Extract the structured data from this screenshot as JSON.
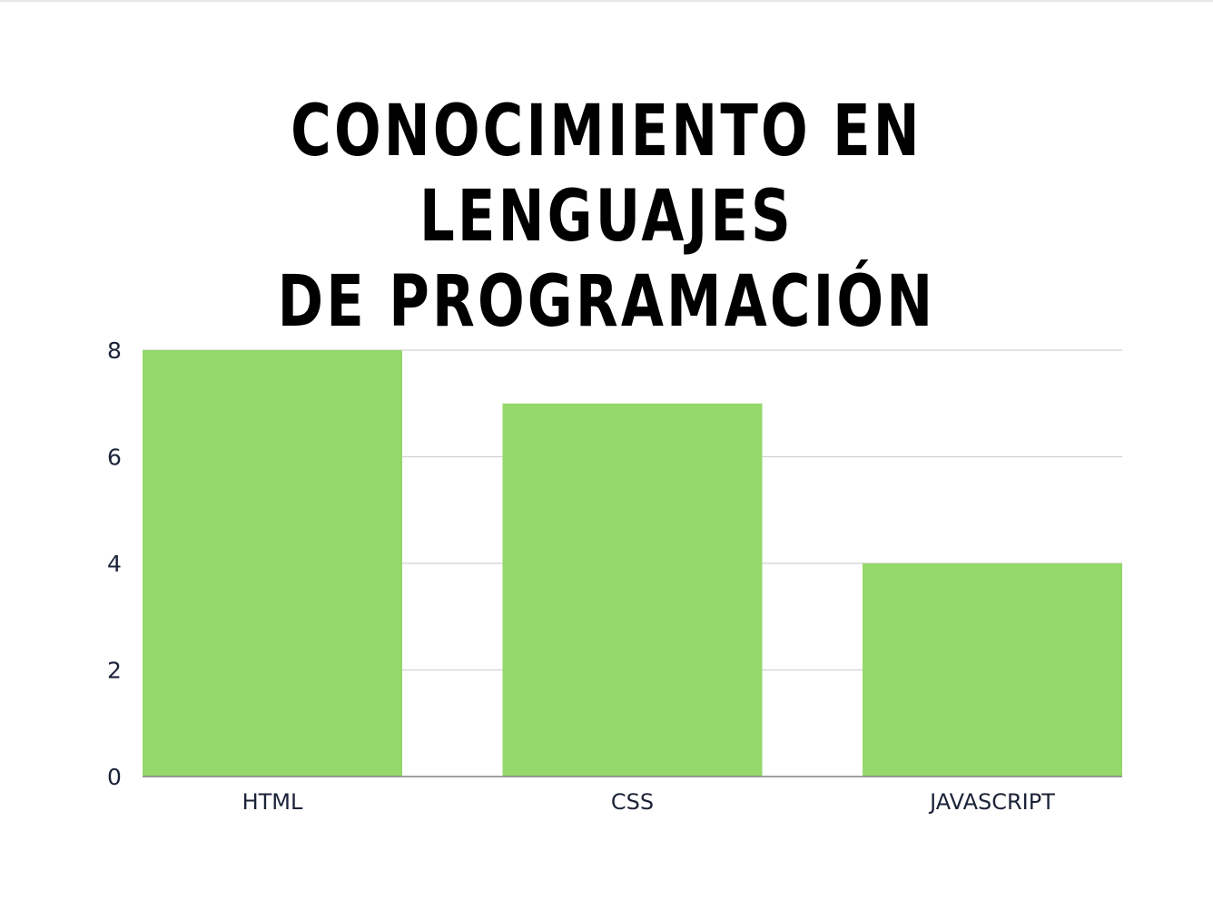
{
  "chart_data": {
    "type": "bar",
    "title_lines": [
      "CONOCIMIENTO EN LENGUAJES",
      "DE PROGRAMACIÓN"
    ],
    "categories": [
      "HTML",
      "CSS",
      "JAVASCRIPT"
    ],
    "values": [
      8,
      7,
      4
    ],
    "ylim": [
      0,
      8
    ],
    "yticks": [
      0,
      2,
      4,
      6,
      8
    ],
    "grid": true,
    "legend": "none",
    "bar_color": "#95d86a",
    "grid_color": "#cfd2d6",
    "axis_color": "#7f8387",
    "label_color": "#1b2338"
  }
}
